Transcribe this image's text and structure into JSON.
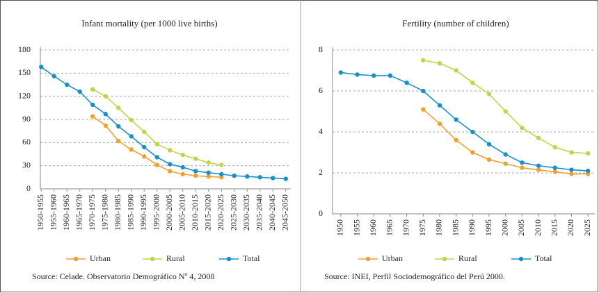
{
  "chart_data": [
    {
      "type": "line",
      "title": "Infant mortality (per 1000 live births)",
      "categories": [
        "1950-1955",
        "1955-1960",
        "1960-1965",
        "1965-1970",
        "1970-1975",
        "1975-1980",
        "1980-1985",
        "1985-1990",
        "1990-1995",
        "1995-2000",
        "2000-2005",
        "2005-2010",
        "2010-2015",
        "2015-2020",
        "2020-2025",
        "2025-2030",
        "2030-2035",
        "2035-2040",
        "2040-2045",
        "2045-2050"
      ],
      "series": [
        {
          "name": "Urban",
          "color": "#f0a030",
          "values": [
            null,
            null,
            null,
            null,
            94,
            82,
            62,
            51,
            42,
            31,
            23,
            19,
            17,
            16,
            15,
            null,
            null,
            null,
            null,
            null
          ]
        },
        {
          "name": "Rural",
          "color": "#c3d44a",
          "values": [
            null,
            null,
            null,
            null,
            129,
            120,
            105,
            89,
            74,
            58,
            50,
            44,
            39,
            34,
            31,
            null,
            null,
            null,
            null,
            null
          ]
        },
        {
          "name": "Total",
          "color": "#1a8fc8",
          "values": [
            158,
            146,
            135,
            126,
            109,
            97,
            81,
            68,
            54,
            41,
            32,
            28,
            23,
            21,
            19,
            17,
            16,
            15,
            14,
            13
          ]
        }
      ],
      "ylim": [
        0,
        180
      ],
      "yticks": [
        0,
        30,
        60,
        90,
        120,
        150,
        180
      ],
      "grid": true,
      "source": "Source: Celade. Observatorio Demográfico Nº 4, 2008"
    },
    {
      "type": "line",
      "title": "Fertility (number of children)",
      "categories": [
        "1950",
        "1955",
        "1960",
        "1965",
        "1970",
        "1975",
        "1980",
        "1985",
        "1990",
        "1995",
        "2000",
        "2005",
        "2010",
        "2015",
        "2020",
        "2025"
      ],
      "series": [
        {
          "name": "Urban",
          "color": "#f0a030",
          "values": [
            null,
            null,
            null,
            null,
            null,
            5.1,
            4.4,
            3.6,
            3.0,
            2.65,
            2.45,
            2.25,
            2.15,
            2.05,
            1.95,
            1.95
          ]
        },
        {
          "name": "Rural",
          "color": "#c3d44a",
          "values": [
            null,
            null,
            null,
            null,
            null,
            7.5,
            7.35,
            7.0,
            6.4,
            5.85,
            5.0,
            4.2,
            3.7,
            3.25,
            3.0,
            2.95
          ]
        },
        {
          "name": "Total",
          "color": "#1a8fc8",
          "values": [
            6.9,
            6.8,
            6.75,
            6.75,
            6.4,
            6.0,
            5.3,
            4.6,
            4.0,
            3.4,
            2.9,
            2.5,
            2.35,
            2.25,
            2.15,
            2.1
          ]
        }
      ],
      "ylim": [
        0,
        8
      ],
      "yticks": [
        0,
        2,
        4,
        6,
        8
      ],
      "grid": true,
      "source": "Source: INEI, Perfil Sociodemográfico del Perú 2000."
    }
  ]
}
